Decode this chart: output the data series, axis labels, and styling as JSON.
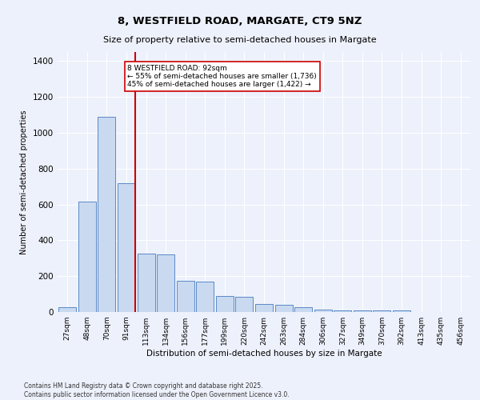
{
  "title1": "8, WESTFIELD ROAD, MARGATE, CT9 5NZ",
  "title2": "Size of property relative to semi-detached houses in Margate",
  "xlabel": "Distribution of semi-detached houses by size in Margate",
  "ylabel": "Number of semi-detached properties",
  "bar_labels": [
    "27sqm",
    "48sqm",
    "70sqm",
    "91sqm",
    "113sqm",
    "134sqm",
    "156sqm",
    "177sqm",
    "199sqm",
    "220sqm",
    "242sqm",
    "263sqm",
    "284sqm",
    "306sqm",
    "327sqm",
    "349sqm",
    "370sqm",
    "392sqm",
    "413sqm",
    "435sqm",
    "456sqm"
  ],
  "bar_values": [
    28,
    615,
    1090,
    720,
    325,
    320,
    175,
    170,
    90,
    85,
    45,
    38,
    25,
    13,
    10,
    10,
    10,
    8,
    0,
    0,
    0
  ],
  "bar_color": "#c9d9f0",
  "bar_edge_color": "#5a8ac6",
  "annotation_line1": "8 WESTFIELD ROAD: 92sqm",
  "annotation_line2": "← 55% of semi-detached houses are smaller (1,736)",
  "annotation_line3": "45% of semi-detached houses are larger (1,422) →",
  "red_line_color": "#cc0000",
  "annotation_box_color": "#ffffff",
  "annotation_box_edge_color": "#cc0000",
  "ylim": [
    0,
    1450
  ],
  "yticks": [
    0,
    200,
    400,
    600,
    800,
    1000,
    1200,
    1400
  ],
  "footer_line1": "Contains HM Land Registry data © Crown copyright and database right 2025.",
  "footer_line2": "Contains public sector information licensed under the Open Government Licence v3.0.",
  "background_color": "#edf1fb",
  "plot_bg_color": "#edf1fb"
}
